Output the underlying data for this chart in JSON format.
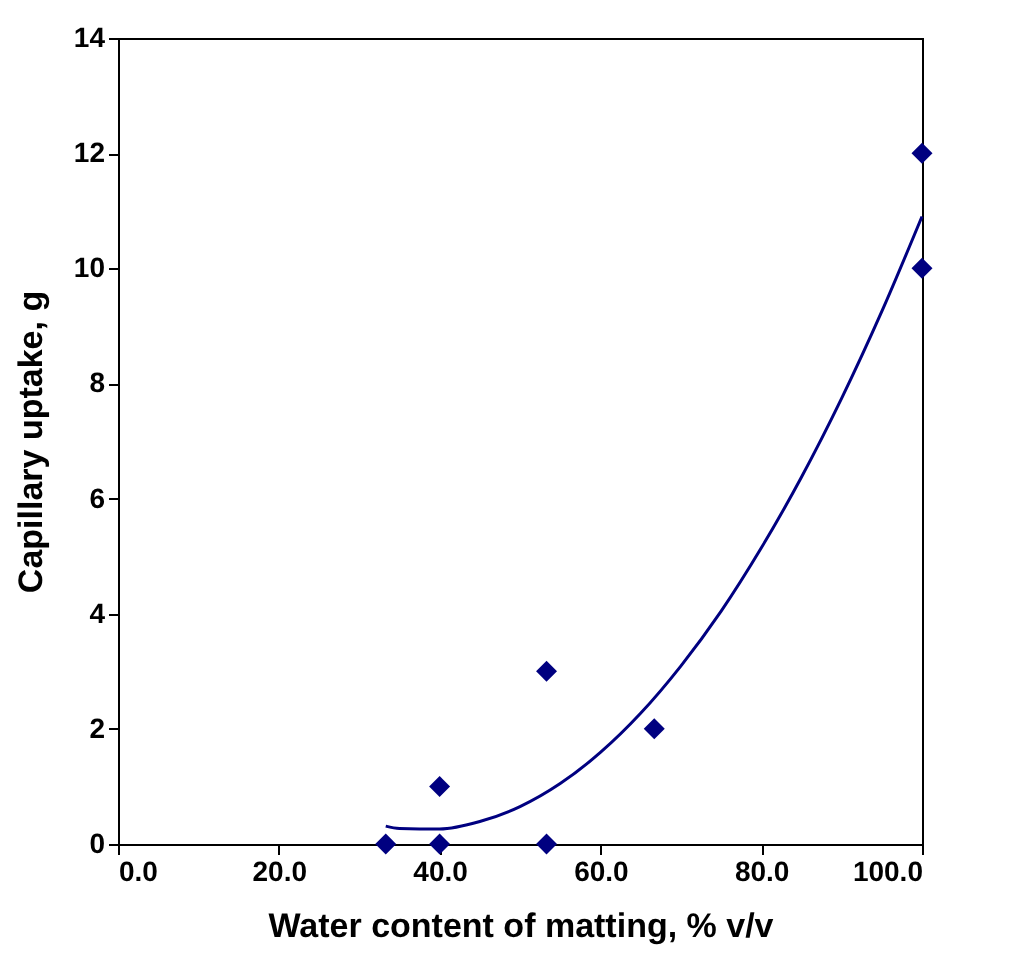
{
  "chart_data": {
    "type": "scatter",
    "xlabel": "Water content of matting, % v/v",
    "ylabel": "Capillary uptake, g",
    "xlim": [
      0,
      100
    ],
    "ylim": [
      0,
      14
    ],
    "xticks": [
      {
        "value": 0,
        "label": "0.0"
      },
      {
        "value": 20,
        "label": "20.0"
      },
      {
        "value": 40,
        "label": "40.0"
      },
      {
        "value": 60,
        "label": "60.0"
      },
      {
        "value": 80,
        "label": "80.0"
      },
      {
        "value": 100,
        "label": "100.0"
      }
    ],
    "yticks": [
      0,
      2,
      4,
      6,
      8,
      10,
      12,
      14
    ],
    "grid": false,
    "series": [
      {
        "marker": "diamond",
        "color": "#000080",
        "x": [
          33.3,
          40,
          40,
          53.3,
          53.3,
          66.7,
          100,
          100
        ],
        "values": [
          0,
          1,
          0,
          3,
          0,
          2,
          12,
          10
        ]
      },
      {
        "type": "line",
        "marker": "none",
        "line_style": "solid",
        "color": "#000080",
        "x": [
          33.3,
          35,
          40,
          45,
          50,
          55,
          60,
          65,
          70,
          75,
          80,
          85,
          90,
          95,
          100
        ],
        "values": [
          0.31,
          0.27,
          0.26,
          0.39,
          0.65,
          1.05,
          1.59,
          2.27,
          3.09,
          4.04,
          5.14,
          6.37,
          7.74,
          9.25,
          10.9
        ]
      }
    ]
  }
}
